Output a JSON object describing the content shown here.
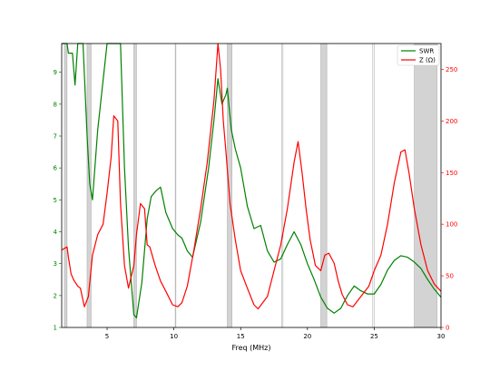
{
  "chart_data": {
    "type": "line",
    "title": "",
    "xlabel": "Freq (MHz)",
    "xlim": [
      1.6,
      30
    ],
    "y_left": {
      "label": "",
      "lim": [
        1,
        9.9
      ],
      "ticks": [
        1,
        2,
        3,
        4,
        5,
        6,
        7,
        8,
        9
      ],
      "tick_color": "#008000"
    },
    "y_right": {
      "label": "",
      "lim": [
        0,
        275
      ],
      "ticks": [
        0,
        50,
        100,
        150,
        200,
        250
      ],
      "tick_color": "#ff0000"
    },
    "x_ticks": [
      5,
      10,
      15,
      20,
      25,
      30
    ],
    "x_tick_labels": [
      "5",
      "10",
      "15",
      "20",
      "25",
      "30"
    ],
    "legend": {
      "placement": "top-right",
      "entries": [
        "SWR",
        "Z (Ω)"
      ]
    },
    "band_lines": [
      1.8,
      2.0,
      3.5,
      3.8,
      7.0,
      7.2,
      10.1,
      10.15,
      14.0,
      14.35,
      18.068,
      18.168,
      21.0,
      21.45,
      24.89,
      24.99,
      28.0,
      29.7
    ],
    "shaded_bands": [
      [
        1.8,
        2.0
      ],
      [
        3.5,
        3.8
      ],
      [
        7.0,
        7.2
      ],
      [
        14.0,
        14.35
      ],
      [
        21.0,
        21.45
      ],
      [
        28.0,
        29.7
      ]
    ],
    "series": [
      {
        "name": "SWR",
        "axis": "left",
        "color": "#008000",
        "x": [
          1.6,
          2.0,
          2.1,
          2.4,
          2.6,
          2.8,
          3.0,
          3.2,
          3.5,
          3.7,
          3.9,
          4.3,
          5.0,
          5.5,
          6.0,
          6.3,
          6.6,
          7.0,
          7.2,
          7.6,
          8.0,
          8.3,
          8.7,
          9.0,
          9.4,
          9.9,
          10.3,
          10.6,
          11.0,
          11.4,
          12.0,
          12.6,
          13.0,
          13.3,
          13.6,
          13.9,
          14.0,
          14.3,
          14.6,
          15.0,
          15.5,
          16.0,
          16.5,
          17.0,
          17.5,
          18.0,
          18.5,
          19.0,
          19.5,
          20.0,
          20.5,
          21.0,
          21.5,
          22.0,
          22.5,
          23.0,
          23.5,
          24.0,
          24.5,
          25.0,
          25.5,
          26.0,
          26.5,
          27.0,
          27.5,
          28.0,
          28.5,
          29.0,
          29.5,
          30.0
        ],
        "y": [
          9.9,
          9.9,
          9.6,
          9.6,
          8.6,
          9.9,
          9.9,
          9.9,
          7.0,
          5.5,
          5.0,
          7.2,
          9.9,
          9.9,
          9.9,
          6.0,
          3.5,
          1.4,
          1.3,
          2.4,
          4.4,
          5.1,
          5.3,
          5.4,
          4.6,
          4.1,
          3.9,
          3.8,
          3.4,
          3.2,
          4.3,
          6.0,
          7.5,
          8.8,
          8.0,
          8.3,
          8.5,
          7.2,
          6.6,
          6.0,
          4.8,
          4.1,
          4.2,
          3.4,
          3.05,
          3.15,
          3.6,
          4.0,
          3.6,
          3.0,
          2.5,
          1.95,
          1.6,
          1.45,
          1.6,
          2.0,
          2.3,
          2.15,
          2.05,
          2.05,
          2.35,
          2.8,
          3.1,
          3.25,
          3.2,
          3.05,
          2.85,
          2.5,
          2.2,
          1.95
        ]
      },
      {
        "name": "Z (Ω)",
        "axis": "right",
        "color": "#ff0000",
        "x": [
          1.6,
          2.0,
          2.1,
          2.3,
          2.5,
          2.8,
          3.0,
          3.3,
          3.6,
          3.9,
          4.3,
          4.7,
          5.0,
          5.3,
          5.5,
          5.8,
          6.0,
          6.3,
          6.6,
          7.0,
          7.2,
          7.5,
          7.8,
          8.0,
          8.2,
          8.6,
          9.0,
          9.4,
          9.9,
          10.3,
          10.6,
          11.0,
          11.5,
          12.0,
          12.5,
          13.0,
          13.3,
          13.5,
          13.7,
          13.9,
          14.2,
          14.6,
          15.0,
          15.5,
          16.0,
          16.3,
          17.0,
          17.5,
          18.0,
          18.5,
          19.0,
          19.3,
          19.6,
          19.9,
          20.2,
          20.6,
          21.0,
          21.3,
          21.6,
          22.0,
          22.3,
          22.6,
          23.0,
          23.4,
          24.0,
          24.6,
          25.0,
          25.5,
          26.0,
          26.5,
          27.0,
          27.3,
          27.6,
          28.0,
          28.5,
          29.0,
          29.5,
          30.0
        ],
        "y": [
          75,
          78,
          68,
          52,
          46,
          40,
          38,
          20,
          30,
          70,
          90,
          100,
          130,
          165,
          205,
          200,
          120,
          60,
          38,
          60,
          90,
          120,
          115,
          80,
          78,
          60,
          45,
          35,
          22,
          20,
          24,
          40,
          75,
          115,
          160,
          220,
          275,
          250,
          200,
          170,
          120,
          85,
          55,
          38,
          22,
          18,
          30,
          55,
          80,
          115,
          160,
          180,
          150,
          115,
          85,
          60,
          55,
          70,
          72,
          62,
          45,
          32,
          22,
          20,
          30,
          40,
          55,
          70,
          100,
          140,
          170,
          172,
          150,
          115,
          80,
          55,
          42,
          35
        ]
      }
    ]
  }
}
